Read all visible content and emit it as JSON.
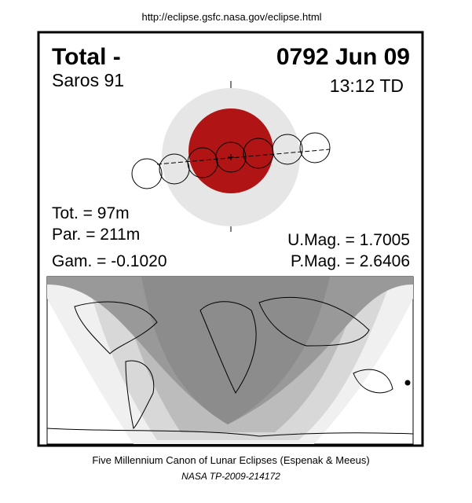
{
  "header": {
    "url": "http://eclipse.gsfc.nasa.gov/eclipse.html"
  },
  "eclipse": {
    "type": "Total  -",
    "date": "0792 Jun 09",
    "saros": "Saros  91",
    "time": "13:12 TD",
    "total_duration": "Tot. =  97m",
    "partial_duration": "Par. = 211m",
    "gamma": "Gam. = -0.1020",
    "umbral_magnitude": "U.Mag. = 1.7005",
    "penumbral_magnitude": "P.Mag. = 2.6406"
  },
  "footer": {
    "title": "Five Millennium Canon of Lunar Eclipses (Espenak & Meeus)",
    "reference": "NASA TP-2009-214172"
  }
}
